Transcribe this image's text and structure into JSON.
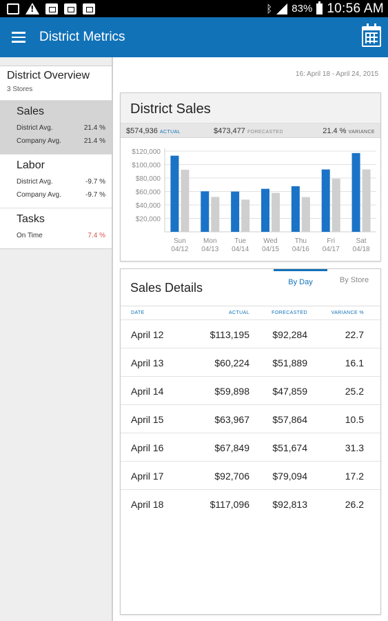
{
  "status_bar": {
    "battery": "83%",
    "time": "10:56 AM"
  },
  "app_bar": {
    "title": "District Metrics",
    "menu_icon": "hamburger-menu-icon",
    "calendar_icon": "calendar-icon",
    "color": "#1172b8"
  },
  "sidebar": {
    "overview_title": "District Overview",
    "overview_sub": "3 Stores",
    "sections": [
      {
        "title": "Sales",
        "rows": [
          {
            "label": "District Avg.",
            "value": "21.4 %"
          },
          {
            "label": "Company Avg.",
            "value": "21.4 %"
          }
        ]
      },
      {
        "title": "Labor",
        "rows": [
          {
            "label": "District Avg.",
            "value": "-9.7 %"
          },
          {
            "label": "Company Avg.",
            "value": "-9.7 %"
          }
        ]
      },
      {
        "title": "Tasks",
        "rows": [
          {
            "label": "On Time",
            "value": "7.4 %"
          }
        ]
      }
    ]
  },
  "date_range": "16: April 18 - April 24, 2015",
  "sales_card": {
    "title": "District Sales",
    "actual_value": "$574,936",
    "actual_tag": "ACTUAL",
    "forecast_value": "$473,477",
    "forecast_tag": "FORECASTED",
    "variance_value": "21.4 %",
    "variance_tag": "VARIANCE"
  },
  "chart_data": {
    "type": "bar",
    "categories": [
      "Sun 04/12",
      "Mon 04/13",
      "Tue 04/14",
      "Wed 04/15",
      "Thu 04/16",
      "Fri 04/17",
      "Sat 04/18"
    ],
    "category_lines": [
      [
        "Sun",
        "04/12"
      ],
      [
        "Mon",
        "04/13"
      ],
      [
        "Tue",
        "04/14"
      ],
      [
        "Wed",
        "04/15"
      ],
      [
        "Thu",
        "04/16"
      ],
      [
        "Fri",
        "04/17"
      ],
      [
        "Sat",
        "04/18"
      ]
    ],
    "series": [
      {
        "values": [
          113195,
          60224,
          59898,
          63967,
          67849,
          92706,
          117096
        ],
        "color": "#1a73c6"
      },
      {
        "values": [
          92284,
          51889,
          47859,
          57864,
          51674,
          79094,
          92813
        ],
        "color": "#cfcfcf"
      }
    ],
    "ylim": [
      0,
      120000
    ],
    "yticks": [
      20000,
      40000,
      60000,
      80000,
      100000,
      120000
    ],
    "ytick_labels": [
      "$20,000",
      "$40,000",
      "$60,000",
      "$80,000",
      "$100,000",
      "$120,000"
    ],
    "grid": true
  },
  "details_card": {
    "title": "Sales Details",
    "tabs": [
      "By Day",
      "By Store"
    ],
    "columns": [
      "DATE",
      "ACTUAL",
      "FORECASTED",
      "VARIANCE %"
    ],
    "rows": [
      [
        "April 12",
        "$113,195",
        "$92,284",
        "22.7"
      ],
      [
        "April 13",
        "$60,224",
        "$51,889",
        "16.1"
      ],
      [
        "April 14",
        "$59,898",
        "$47,859",
        "25.2"
      ],
      [
        "April 15",
        "$63,967",
        "$57,864",
        "10.5"
      ],
      [
        "April 16",
        "$67,849",
        "$51,674",
        "31.3"
      ],
      [
        "April 17",
        "$92,706",
        "$79,094",
        "17.2"
      ],
      [
        "April 18",
        "$117,096",
        "$92,813",
        "26.2"
      ]
    ]
  }
}
